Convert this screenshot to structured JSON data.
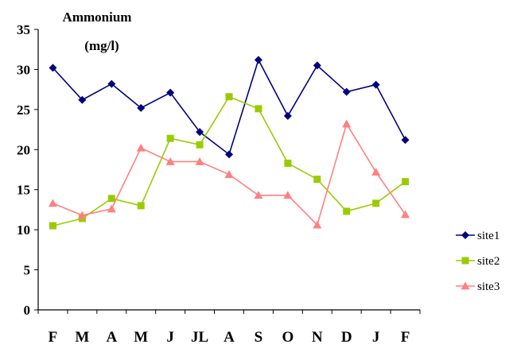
{
  "chart_data": {
    "type": "line",
    "title": "Ammonium",
    "subtitle": "(mg/l)",
    "categories": [
      "F",
      "M",
      "A",
      "M",
      "J",
      "JL",
      "A",
      "S",
      "O",
      "N",
      "D",
      "J",
      "F"
    ],
    "ylim": [
      0,
      35
    ],
    "yticks": [
      0,
      5,
      10,
      15,
      20,
      25,
      30,
      35
    ],
    "grid": false,
    "legend_position": "right",
    "series": [
      {
        "name": "site1",
        "color": "#000080",
        "marker": "diamond",
        "values": [
          30.2,
          26.2,
          28.2,
          25.2,
          27.1,
          22.2,
          19.4,
          31.2,
          24.2,
          30.5,
          27.2,
          28.1,
          21.2
        ]
      },
      {
        "name": "site2",
        "color": "#99CC00",
        "marker": "square",
        "values": [
          10.5,
          11.4,
          13.9,
          13.0,
          21.4,
          20.6,
          26.6,
          25.1,
          18.3,
          16.3,
          12.3,
          13.3,
          16.0
        ]
      },
      {
        "name": "site3",
        "color": "#FF8080",
        "marker": "triangle",
        "values": [
          13.3,
          11.8,
          12.6,
          20.2,
          18.5,
          18.5,
          16.9,
          14.3,
          14.3,
          10.6,
          23.2,
          17.2,
          11.9
        ]
      }
    ]
  }
}
